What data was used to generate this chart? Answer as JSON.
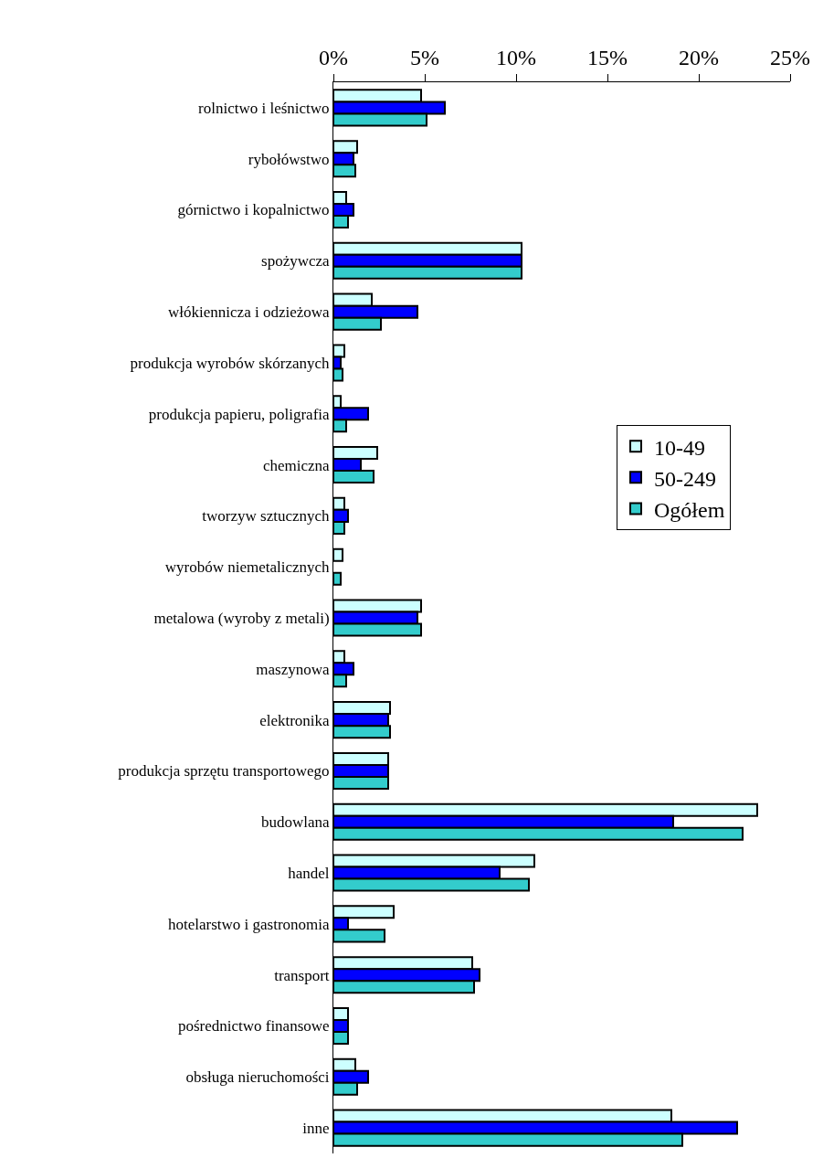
{
  "chart_data": {
    "type": "bar",
    "orientation": "horizontal",
    "categories": [
      "rolnictwo i leśnictwo",
      "rybołówstwo",
      "górnictwo i kopalnictwo",
      "spożywcza",
      "włókiennicza i odzieżowa",
      "produkcja wyrobów skórzanych",
      "produkcja papieru, poligrafia",
      "chemiczna",
      "tworzyw sztucznych",
      "wyrobów niemetalicznych",
      "metalowa (wyroby z metali)",
      "maszynowa",
      "elektronika",
      "produkcja sprzętu transportowego",
      "budowlana",
      "handel",
      "hotelarstwo i gastronomia",
      "transport",
      "pośrednictwo finansowe",
      "obsługa nieruchomości",
      "inne"
    ],
    "series": [
      {
        "name": "10-49",
        "color": "#ccffff",
        "values": [
          4.8,
          1.3,
          0.7,
          10.3,
          2.1,
          0.6,
          0.4,
          2.4,
          0.6,
          0.5,
          4.8,
          0.6,
          3.1,
          3.0,
          23.2,
          11.0,
          3.3,
          7.6,
          0.8,
          1.2,
          18.5
        ]
      },
      {
        "name": "50-249",
        "color": "#0000ff",
        "values": [
          6.1,
          1.1,
          1.1,
          10.3,
          4.6,
          0.4,
          1.9,
          1.5,
          0.8,
          null,
          4.6,
          1.1,
          3.0,
          3.0,
          18.6,
          9.1,
          0.8,
          8.0,
          0.8,
          1.9,
          22.1
        ]
      },
      {
        "name": "Ogółem",
        "color": "#33cccc",
        "values": [
          5.1,
          1.2,
          0.8,
          10.3,
          2.6,
          0.5,
          0.7,
          2.2,
          0.6,
          0.4,
          4.8,
          0.7,
          3.1,
          3.0,
          22.4,
          10.7,
          2.8,
          7.7,
          0.8,
          1.3,
          19.1
        ]
      }
    ],
    "xlim": [
      0,
      25
    ],
    "xticks": [
      {
        "value": 0,
        "label": "0%"
      },
      {
        "value": 5,
        "label": "5%"
      },
      {
        "value": 10,
        "label": "10%"
      },
      {
        "value": 15,
        "label": "15%"
      },
      {
        "value": 20,
        "label": "20%"
      },
      {
        "value": 25,
        "label": "25%"
      }
    ],
    "grid": false,
    "legend": "right"
  }
}
